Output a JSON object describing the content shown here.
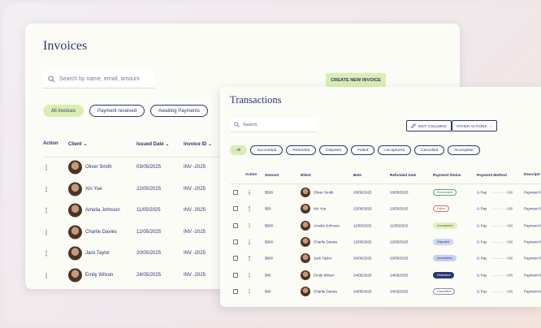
{
  "invoices": {
    "title": "Invoices",
    "search": {
      "placeholder": "Search by name, email, amount",
      "icon": "search-icon"
    },
    "create_button": "CREATE NEW INVOICE",
    "filters": [
      "All invoices",
      "Payment received",
      "Awaiting Payments"
    ],
    "columns": {
      "action": "Action",
      "client": "Client",
      "issued_date": "Issued Date",
      "invoice_id": "Invoice ID"
    },
    "rows": [
      {
        "client": "Oliver Smith",
        "date": "03/05/2025",
        "id": "INV -2025"
      },
      {
        "client": "Xin Yue",
        "date": "22/05/2025",
        "id": "INV -2025"
      },
      {
        "client": "Amelia Johnson",
        "date": "11/05/2025",
        "id": "INV -2025"
      },
      {
        "client": "Charlie Davies",
        "date": "12/05/2025",
        "id": "INV -2025"
      },
      {
        "client": "Jack Taylor",
        "date": "20/05/2025",
        "id": "INV -2025"
      },
      {
        "client": "Emily Wilson",
        "date": "24/05/2025",
        "id": "INV -2025"
      }
    ]
  },
  "transactions": {
    "title": "Transactions",
    "search": {
      "placeholder": "Search",
      "icon": "search-icon"
    },
    "edit_columns": "EDIT COLUMNS",
    "other_actions": "OTHER ACTIONS",
    "filters": [
      "All",
      "Succeeded",
      "Refunded",
      "Disputed",
      "Failed",
      "Uncaptured",
      "Cancelled",
      "Incomplete"
    ],
    "columns": {
      "action": "Action",
      "amount": "Amount",
      "client": "Client",
      "date": "Date",
      "refunded_date": "Refunded Date",
      "payment_status": "Payment Status",
      "payment_method": "Payment Method",
      "description": "Descripti"
    },
    "rows": [
      {
        "amount": "$500",
        "client": "Oliver Smith",
        "date": "03/05/2025",
        "refunded": "03/05/2025",
        "status": "Succeeded",
        "status_class": "st-succeeded",
        "method": "Pay",
        "mask": "············· 986",
        "desc": "Payment fo"
      },
      {
        "amount": "$50",
        "client": "Xin Yue",
        "date": "22/05/2025",
        "refunded": "22/05/2025",
        "status": "Failed",
        "status_class": "st-failed",
        "method": "Pay",
        "mask": "············· 986",
        "desc": "Payment fo"
      },
      {
        "amount": "$500",
        "client": "Amelia Johnson",
        "date": "11/05/2025",
        "refunded": "11/05/2025",
        "status": "Uncaptured",
        "status_class": "st-uncaptured",
        "method": "Pay",
        "mask": "············· 986",
        "desc": "Payment fo"
      },
      {
        "amount": "$300",
        "client": "Charlie Davies",
        "date": "12/05/2025",
        "refunded": "12/05/2025",
        "status": "Disputed",
        "status_class": "st-disputed",
        "method": "Pay",
        "mask": "············· 986",
        "desc": "Payment fo"
      },
      {
        "amount": "$800",
        "client": "Jack Taylor",
        "date": "20/05/2025",
        "refunded": "20/05/2025",
        "status": "Incomplete",
        "status_class": "st-incomplete",
        "method": "Pay",
        "mask": "············· 986",
        "desc": "Payment fo"
      },
      {
        "amount": "$45",
        "client": "Emily Wilson",
        "date": "24/05/2025",
        "refunded": "24/05/2025",
        "status": "Refunded",
        "status_class": "st-refunded",
        "method": "Pay",
        "mask": "············· 986",
        "desc": "Payment fo"
      },
      {
        "amount": "$45",
        "client": "Charlie Davies",
        "date": "24/05/2025",
        "refunded": "24/05/2025",
        "status": "Cancelled",
        "status_class": "st-cancelled",
        "method": "Pay",
        "mask": "············· 986",
        "desc": "Payment fo"
      }
    ]
  },
  "colors": {
    "accent": "#d9eeb3",
    "navy": "#2c3470",
    "card": "#fbfcf6"
  }
}
